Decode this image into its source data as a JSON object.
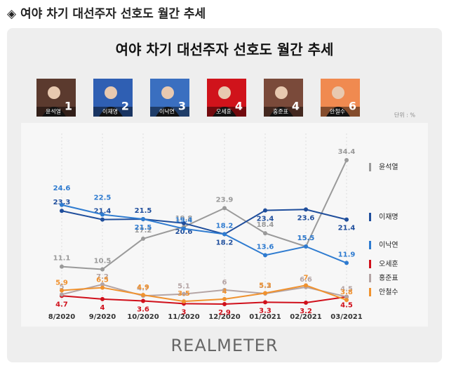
{
  "header": {
    "title": "◈ 여야 차기 대선주자 선호도 월간 추세"
  },
  "chart_data": {
    "type": "line",
    "title": "여야 차기 대선주자 선호도 월간 추세",
    "unit": "단위 : %",
    "cards": [
      {
        "name": "윤석열",
        "rank": 1
      },
      {
        "name": "이재명",
        "rank": 2
      },
      {
        "name": "이낙연",
        "rank": 3
      },
      {
        "name": "오세훈",
        "rank": 4
      },
      {
        "name": "홍준표",
        "rank": 4
      },
      {
        "name": "안철수",
        "rank": 6
      }
    ],
    "categories": [
      "8/2020",
      "9/2020",
      "10/2020",
      "11/2020",
      "12/2020",
      "01/2021",
      "02/2021",
      "03/2021"
    ],
    "series": [
      {
        "name": "윤석열",
        "color": "#9a9a9a",
        "values": [
          11.1,
          10.5,
          17.2,
          19.8,
          23.9,
          18.4,
          15.5,
          34.4
        ]
      },
      {
        "name": "이재명",
        "color": "#1f4e9c",
        "values": [
          23.3,
          21.4,
          21.5,
          20.6,
          18.2,
          23.4,
          23.6,
          21.4
        ]
      },
      {
        "name": "이낙연",
        "color": "#2e7bd0",
        "values": [
          24.6,
          22.5,
          21.5,
          19.4,
          18.2,
          13.6,
          15.5,
          11.9
        ]
      },
      {
        "name": "오세훈",
        "color": "#d0101b",
        "values": [
          4.7,
          4.0,
          3.6,
          3.0,
          2.9,
          3.3,
          3.2,
          4.5
        ]
      },
      {
        "name": "홍준표",
        "color": "#b4a4a4",
        "values": [
          5.0,
          7.2,
          4.7,
          5.1,
          6.0,
          5.2,
          6.6,
          4.5
        ]
      },
      {
        "name": "안철수",
        "color": "#f0922f",
        "values": [
          5.9,
          6.5,
          4.9,
          3.5,
          4.0,
          5.3,
          7.0,
          3.8
        ]
      }
    ],
    "source": "REALMETER"
  }
}
